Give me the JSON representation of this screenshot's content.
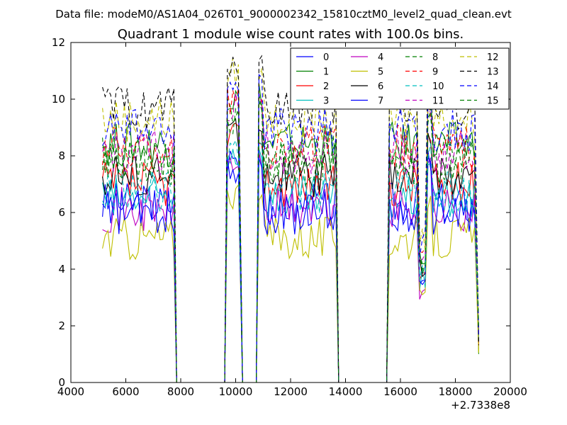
{
  "chart_data": {
    "type": "line",
    "suptitle": "Data file: modeM0/AS1A04_026T01_9000002342_15810cztM0_level2_quad_clean.evt",
    "title": "Quadrant 1 module wise count rates with 100.0s bins.",
    "xlabel": "",
    "ylabel": "",
    "xlim": [
      4000,
      20000
    ],
    "ylim": [
      0,
      12
    ],
    "x_offset_label": "+2.7338e8",
    "xticks": [
      4000,
      6000,
      8000,
      10000,
      12000,
      14000,
      16000,
      18000,
      20000
    ],
    "yticks": [
      0,
      2,
      4,
      6,
      8,
      10,
      12
    ],
    "grid": false,
    "legend": {
      "placement": "upper right",
      "columns": 4
    },
    "segments": [
      {
        "start": 5150,
        "end": 7750,
        "level": 1.0
      },
      {
        "start": 9700,
        "end": 10150,
        "level": 1.0
      },
      {
        "start": 10850,
        "end": 13650,
        "level": 1.0
      },
      {
        "start": 15600,
        "end": 18750,
        "level": 1.0
      }
    ],
    "series": [
      {
        "name": "0",
        "color": "#0000ff",
        "dash": "solid",
        "base": 6.3
      },
      {
        "name": "1",
        "color": "#008000",
        "dash": "solid",
        "base": 8.4
      },
      {
        "name": "2",
        "color": "#ff0000",
        "dash": "solid",
        "base": 7.0
      },
      {
        "name": "3",
        "color": "#00bfbf",
        "dash": "solid",
        "base": 6.5
      },
      {
        "name": "4",
        "color": "#bf00bf",
        "dash": "solid",
        "base": 6.1
      },
      {
        "name": "5",
        "color": "#bfbf00",
        "dash": "solid",
        "base": 5.1
      },
      {
        "name": "6",
        "color": "#000000",
        "dash": "solid",
        "base": 7.3
      },
      {
        "name": "7",
        "color": "#0000ff",
        "dash": "solid",
        "base": 6.0
      },
      {
        "name": "8",
        "color": "#008000",
        "dash": "dashed",
        "base": 8.0
      },
      {
        "name": "9",
        "color": "#ff0000",
        "dash": "dashed",
        "base": 8.3
      },
      {
        "name": "10",
        "color": "#00bfbf",
        "dash": "dashed",
        "base": 6.7
      },
      {
        "name": "11",
        "color": "#bf00bf",
        "dash": "dashed",
        "base": 8.1
      },
      {
        "name": "12",
        "color": "#bfbf00",
        "dash": "dashed",
        "base": 9.3
      },
      {
        "name": "13",
        "color": "#000000",
        "dash": "dashed",
        "base": 9.7
      },
      {
        "name": "14",
        "color": "#0000ff",
        "dash": "dashed",
        "base": 8.9
      },
      {
        "name": "15",
        "color": "#008000",
        "dash": "dashed",
        "base": 7.7
      }
    ]
  }
}
